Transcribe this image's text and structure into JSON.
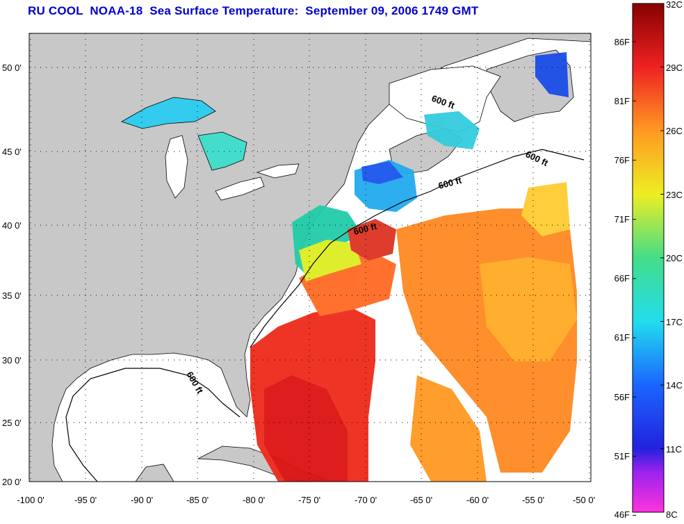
{
  "title": "RU COOL  NOAA-18  Sea Surface Temperature:  September 09, 2006 1749 GMT",
  "map": {
    "lon_labels": [
      "-100 0'",
      "-95 0'",
      "-90 0'",
      "-85 0'",
      "-80 0'",
      "-75 0'",
      "-70 0'",
      "-65 0'",
      "-60 0'",
      "-55 0'",
      "-50 0'"
    ],
    "lat_labels": [
      "50 0'",
      "45 0'",
      "40 0'",
      "35 0'",
      "30 0'",
      "25 0'",
      "20 0'"
    ],
    "contour_labels": [
      "600 ft",
      "600 ft",
      "600 ft",
      "600 ft",
      "600 ft"
    ],
    "land_color": "#c8c8c8",
    "no_data_color": "#ffffff"
  },
  "colorbar": {
    "celsius_labels": [
      "32C",
      "29C",
      "26C",
      "23C",
      "20C",
      "17C",
      "14C",
      "11C",
      "8C"
    ],
    "fahrenheit_labels": [
      "86F",
      "81F",
      "76F",
      "71F",
      "66F",
      "61F",
      "56F",
      "51F",
      "46F"
    ],
    "min_c": 8,
    "max_c": 32
  }
}
